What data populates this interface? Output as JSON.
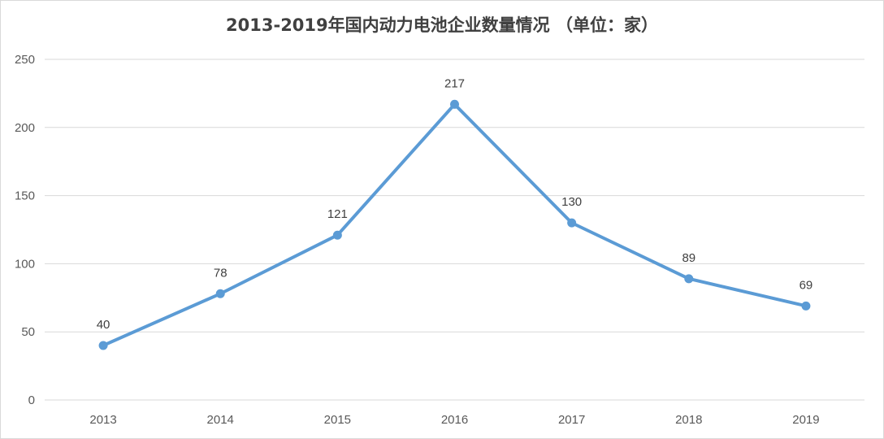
{
  "chart_data": {
    "type": "line",
    "title": "2013-2019年国内动力电池企业数量情况 （单位：家）",
    "categories": [
      "2013",
      "2014",
      "2015",
      "2016",
      "2017",
      "2018",
      "2019"
    ],
    "series": [
      {
        "values": [
          40,
          78,
          121,
          217,
          130,
          89,
          69
        ]
      }
    ],
    "data_labels": [
      "40",
      "78",
      "121",
      "217",
      "130",
      "89",
      "69"
    ],
    "y_ticks": [
      "0",
      "50",
      "100",
      "150",
      "200",
      "250"
    ],
    "ylim": [
      0,
      250
    ],
    "grid": true,
    "legend": "none",
    "xlabel": "",
    "ylabel": "",
    "colors": {
      "line": "#5b9bd5",
      "grid": "#d9d9d9"
    }
  }
}
